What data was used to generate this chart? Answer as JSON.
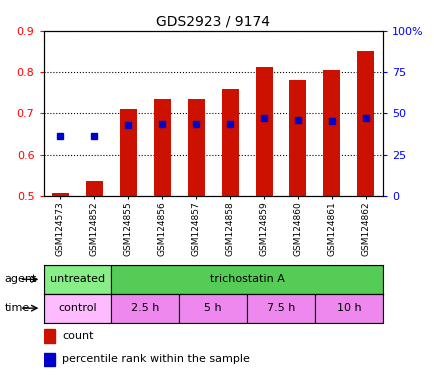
{
  "title": "GDS2923 / 9174",
  "samples": [
    "GSM124573",
    "GSM124852",
    "GSM124855",
    "GSM124856",
    "GSM124857",
    "GSM124858",
    "GSM124859",
    "GSM124860",
    "GSM124861",
    "GSM124862"
  ],
  "count_values": [
    0.506,
    0.535,
    0.71,
    0.735,
    0.735,
    0.76,
    0.813,
    0.78,
    0.805,
    0.852
  ],
  "percentile_values": [
    0.645,
    0.645,
    0.672,
    0.675,
    0.673,
    0.673,
    0.688,
    0.683,
    0.682,
    0.688
  ],
  "ylim_left": [
    0.5,
    0.9
  ],
  "ylim_right": [
    0,
    100
  ],
  "yticks_left": [
    0.5,
    0.6,
    0.7,
    0.8,
    0.9
  ],
  "yticks_right": [
    0,
    25,
    50,
    75,
    100
  ],
  "agent_labels": [
    {
      "text": "untreated",
      "start": 0,
      "end": 2,
      "color": "#88ee88"
    },
    {
      "text": "trichostatin A",
      "start": 2,
      "end": 10,
      "color": "#55cc55"
    }
  ],
  "time_labels": [
    {
      "text": "control",
      "start": 0,
      "end": 2,
      "color": "#ffbbff"
    },
    {
      "text": "2.5 h",
      "start": 2,
      "end": 4,
      "color": "#ee88ee"
    },
    {
      "text": "5 h",
      "start": 4,
      "end": 6,
      "color": "#ee88ee"
    },
    {
      "text": "7.5 h",
      "start": 6,
      "end": 8,
      "color": "#ee88ee"
    },
    {
      "text": "10 h",
      "start": 8,
      "end": 10,
      "color": "#ee88ee"
    }
  ],
  "bar_color": "#cc1100",
  "percentile_color": "#0000cc",
  "bar_bottom": 0.5,
  "agent_row_label": "agent",
  "time_row_label": "time",
  "legend_count": "count",
  "legend_percentile": "percentile rank within the sample",
  "background_color": "#ffffff"
}
